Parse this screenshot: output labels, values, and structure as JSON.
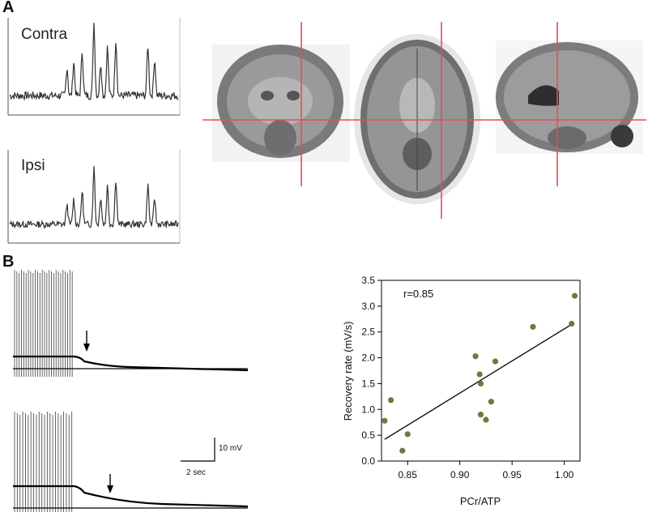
{
  "panelA": {
    "letter": "A",
    "traces": [
      {
        "label": "Contra",
        "peaks": [
          0.35,
          0.42,
          0.55,
          0.9,
          0.4,
          0.6,
          0.7,
          0.45,
          0.62
        ]
      },
      {
        "label": "Ipsi",
        "peaks": [
          0.3,
          0.38,
          0.5,
          0.85,
          0.42,
          0.58,
          0.68,
          0.4,
          0.6
        ]
      }
    ],
    "mri_views": [
      "coronal",
      "axial",
      "sagittal"
    ],
    "crosshair_color": "#e0505a"
  },
  "panelB": {
    "letter": "B",
    "scale_bar": {
      "voltage": "10 mV",
      "time": "2 sec"
    }
  },
  "chart_data": {
    "type": "scatter",
    "title": "",
    "xlabel": "PCr/ATP",
    "ylabel": "Recovery rate (mV/s)",
    "xlim": [
      0.825,
      1.015
    ],
    "ylim": [
      0.0,
      3.5
    ],
    "xticks": [
      "0.85",
      "0.90",
      "0.95",
      "1.00"
    ],
    "xtick_values": [
      0.85,
      0.9,
      0.95,
      1.0
    ],
    "yticks": [
      "0.0",
      "0.5",
      "1.0",
      "1.5",
      "2.0",
      "2.5",
      "3.0",
      "3.5"
    ],
    "ytick_values": [
      0.0,
      0.5,
      1.0,
      1.5,
      2.0,
      2.5,
      3.0,
      3.5
    ],
    "annotation": "r=0.85",
    "point_color": "#6f7a3a",
    "series": [
      {
        "points": [
          [
            0.828,
            0.78
          ],
          [
            0.834,
            1.18
          ],
          [
            0.845,
            0.2
          ],
          [
            0.85,
            0.52
          ],
          [
            0.915,
            2.03
          ],
          [
            0.919,
            1.68
          ],
          [
            0.92,
            1.5
          ],
          [
            0.92,
            0.9
          ],
          [
            0.925,
            0.8
          ],
          [
            0.93,
            1.15
          ],
          [
            0.934,
            1.93
          ],
          [
            0.97,
            2.6
          ],
          [
            1.007,
            2.66
          ],
          [
            1.01,
            3.2
          ]
        ]
      }
    ],
    "fit_line": {
      "x": [
        0.828,
        1.008
      ],
      "y": [
        0.42,
        2.66
      ]
    }
  }
}
